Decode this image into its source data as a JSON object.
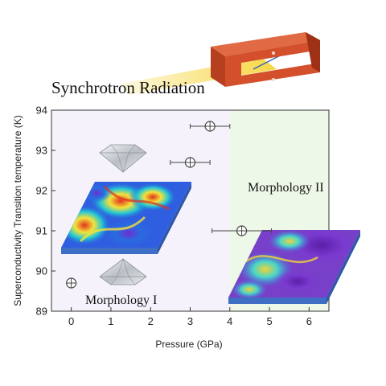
{
  "chart_data": {
    "type": "scatter",
    "title": "",
    "xlabel": "Pressure (GPa)",
    "ylabel": "Superconductivity Transition temperature (K)",
    "xlim": [
      -0.5,
      6.5
    ],
    "ylim": [
      89,
      94
    ],
    "xticks": [
      0,
      1,
      2,
      3,
      4,
      5,
      6
    ],
    "yticks": [
      89,
      90,
      91,
      92,
      93,
      94
    ],
    "series": [
      {
        "points": [
          {
            "x": 0.0,
            "y": 89.7,
            "xerr": 0.0
          },
          {
            "x": 3.0,
            "y": 92.7,
            "xerr": 0.5
          },
          {
            "x": 3.5,
            "y": 93.6,
            "xerr": 0.5
          },
          {
            "x": 4.3,
            "y": 91.0,
            "xerr": 0.75
          }
        ]
      }
    ],
    "regions": [
      {
        "x_from": -0.5,
        "x_to": 4.0,
        "color": "#f5f2fb"
      },
      {
        "x_from": 4.0,
        "x_to": 6.5,
        "color": "#eef8e8"
      }
    ],
    "annotations": {
      "synchrotron": "Synchrotron Radiation",
      "morph1": "Morphology I",
      "morph2": "Morphology II"
    },
    "grid": false,
    "legend": "none"
  },
  "colors": {
    "cell_body": "#d4502c",
    "cell_dark": "#9e3016",
    "beam": "#f6d53a",
    "marker": "#444444",
    "slab_edge": "#3f6fc4"
  },
  "icons": {
    "upper_diamond": "diamond-anvil-icon",
    "lower_diamond": "diamond-anvil-icon"
  }
}
